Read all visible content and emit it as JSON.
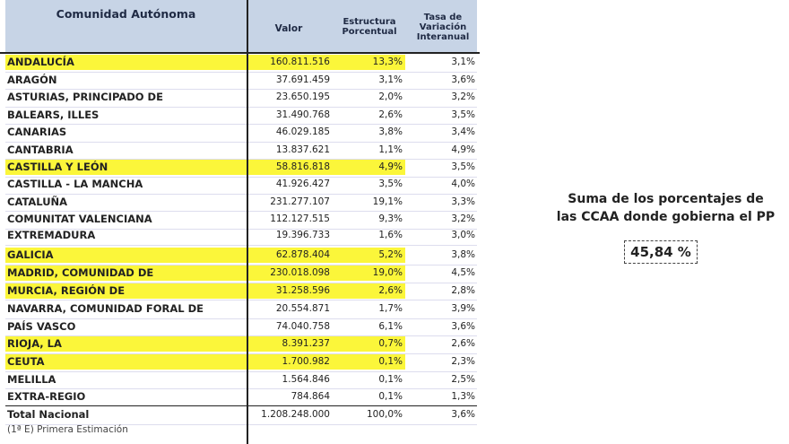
{
  "headers": {
    "name": "Comunidad Autónoma",
    "valor": "Valor",
    "estructura": "Estructura Porcentual",
    "tasa": "Tasa de Variación Interanual"
  },
  "highlight_color": "#fbf63a",
  "rows": [
    {
      "name": "ANDALUCÍA",
      "valor": "160.811.516",
      "estructura": "13,3%",
      "tasa": "3,1%",
      "highlight": true
    },
    {
      "name": "ARAGÓN",
      "valor": "37.691.459",
      "estructura": "3,1%",
      "tasa": "3,6%",
      "highlight": false
    },
    {
      "name": "ASTURIAS, PRINCIPADO DE",
      "valor": "23.650.195",
      "estructura": "2,0%",
      "tasa": "3,2%",
      "highlight": false
    },
    {
      "name": "BALEARS, ILLES",
      "valor": "31.490.768",
      "estructura": "2,6%",
      "tasa": "3,5%",
      "highlight": false
    },
    {
      "name": "CANARIAS",
      "valor": "46.029.185",
      "estructura": "3,8%",
      "tasa": "3,4%",
      "highlight": false
    },
    {
      "name": "CANTABRIA",
      "valor": "13.837.621",
      "estructura": "1,1%",
      "tasa": "4,9%",
      "highlight": false
    },
    {
      "name": "CASTILLA Y LEÓN",
      "valor": "58.816.818",
      "estructura": "4,9%",
      "tasa": "3,5%",
      "highlight": true
    },
    {
      "name": "CASTILLA - LA MANCHA",
      "valor": "41.926.427",
      "estructura": "3,5%",
      "tasa": "4,0%",
      "highlight": false
    },
    {
      "name": "CATALUÑA",
      "valor": "231.277.107",
      "estructura": "19,1%",
      "tasa": "3,3%",
      "highlight": false
    },
    {
      "name": "COMUNITAT VALENCIANA",
      "valor": "112.127.515",
      "estructura": "9,3%",
      "tasa": "3,2%",
      "highlight": false
    },
    {
      "name": "EXTREMADURA",
      "valor": "19.396.733",
      "estructura": "1,6%",
      "tasa": "3,0%",
      "highlight": false
    },
    {
      "name": "GALICIA",
      "valor": "62.878.404",
      "estructura": "5,2%",
      "tasa": "3,8%",
      "highlight": true
    },
    {
      "name": "MADRID, COMUNIDAD DE",
      "valor": "230.018.098",
      "estructura": "19,0%",
      "tasa": "4,5%",
      "highlight": true
    },
    {
      "name": "MURCIA, REGIÓN DE",
      "valor": "31.258.596",
      "estructura": "2,6%",
      "tasa": "2,8%",
      "highlight": true
    },
    {
      "name": "NAVARRA, COMUNIDAD FORAL DE",
      "valor": "20.554.871",
      "estructura": "1,7%",
      "tasa": "3,9%",
      "highlight": false
    },
    {
      "name": "PAÍS VASCO",
      "valor": "74.040.758",
      "estructura": "6,1%",
      "tasa": "3,6%",
      "highlight": false
    },
    {
      "name": "RIOJA, LA",
      "valor": "8.391.237",
      "estructura": "0,7%",
      "tasa": "2,6%",
      "highlight": true
    },
    {
      "name": "CEUTA",
      "valor": "1.700.982",
      "estructura": "0,1%",
      "tasa": "2,3%",
      "highlight": true
    },
    {
      "name": "MELILLA",
      "valor": "1.564.846",
      "estructura": "0,1%",
      "tasa": "2,5%",
      "highlight": false
    },
    {
      "name": "EXTRA-REGIO",
      "valor": "784.864",
      "estructura": "0,1%",
      "tasa": "1,3%",
      "highlight": false
    }
  ],
  "total": {
    "name": "Total Nacional",
    "valor": "1.208.248.000",
    "estructura": "100,0%",
    "tasa": "3,6%"
  },
  "footnote": "(1ª E)  Primera Estimación",
  "side": {
    "line1": "Suma de los porcentajes de",
    "line2": "las CCAA donde gobierna el PP",
    "value": "45,84 %"
  }
}
